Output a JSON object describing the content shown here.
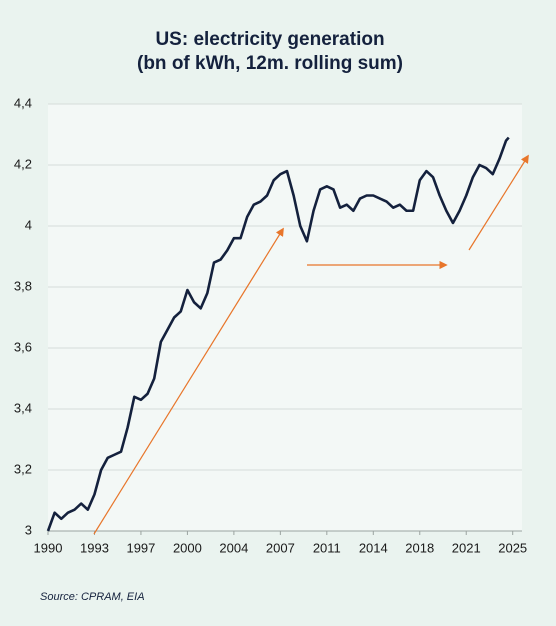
{
  "chart_data": {
    "type": "line",
    "title": "US: electricity generation",
    "subtitle": "(bn of kWh, 12m. rolling sum)",
    "source": "Source: CPRAM, EIA",
    "x": [
      1990,
      1990.5,
      1991,
      1991.5,
      1992,
      1992.5,
      1993,
      1993.5,
      1994,
      1994.5,
      1995,
      1995.5,
      1996,
      1996.5,
      1997,
      1997.5,
      1998,
      1998.5,
      1999,
      1999.5,
      2000,
      2000.5,
      2001,
      2001.5,
      2002,
      2002.5,
      2003,
      2003.5,
      2004,
      2004.5,
      2005,
      2005.5,
      2006,
      2006.5,
      2007,
      2007.5,
      2008,
      2008.5,
      2009,
      2009.5,
      2010,
      2010.5,
      2011,
      2011.5,
      2012,
      2012.5,
      2013,
      2013.5,
      2014,
      2014.5,
      2015,
      2015.5,
      2016,
      2016.5,
      2017,
      2017.5,
      2018,
      2018.5,
      2019,
      2019.5,
      2020,
      2020.5,
      2021,
      2021.5,
      2022,
      2022.5,
      2023,
      2023.5,
      2024,
      2024.5,
      2024.7
    ],
    "series": [
      {
        "name": "Electricity generation",
        "color": "#14213d",
        "values": [
          3.0,
          3.06,
          3.04,
          3.06,
          3.07,
          3.09,
          3.07,
          3.12,
          3.2,
          3.24,
          3.25,
          3.26,
          3.34,
          3.44,
          3.43,
          3.45,
          3.5,
          3.62,
          3.66,
          3.7,
          3.72,
          3.79,
          3.75,
          3.73,
          3.78,
          3.88,
          3.89,
          3.92,
          3.96,
          3.96,
          4.03,
          4.07,
          4.08,
          4.1,
          4.15,
          4.17,
          4.18,
          4.1,
          4.0,
          3.95,
          4.05,
          4.12,
          4.13,
          4.12,
          4.06,
          4.07,
          4.05,
          4.09,
          4.1,
          4.1,
          4.09,
          4.08,
          4.06,
          4.07,
          4.05,
          4.05,
          4.15,
          4.18,
          4.16,
          4.1,
          4.05,
          4.01,
          4.05,
          4.1,
          4.16,
          4.2,
          4.19,
          4.17,
          4.22,
          4.28,
          4.29
        ]
      }
    ],
    "xlim": [
      1990,
      2025.7
    ],
    "xticks": [
      1990,
      {
        "value": 1993.5,
        "label": "1993"
      },
      1997,
      {
        "value": 2000.5,
        "label": "2000"
      },
      2004,
      {
        "value": 2007.5,
        "label": "2007"
      },
      2011,
      {
        "value": 2014.5,
        "label": "2014"
      },
      2018,
      {
        "value": 2021.5,
        "label": "2021"
      },
      2025
    ],
    "ylim": [
      3,
      4.4
    ],
    "yticks": [
      3,
      {
        "value": 3.2,
        "label": "3,2"
      },
      {
        "value": 3.4,
        "label": "3,4"
      },
      {
        "value": 3.6,
        "label": "3,6"
      },
      {
        "value": 3.8,
        "label": "3,8"
      },
      4,
      {
        "value": 4.2,
        "label": "4,2"
      },
      {
        "value": 4.4,
        "label": "4,4"
      }
    ],
    "grid": true
  }
}
